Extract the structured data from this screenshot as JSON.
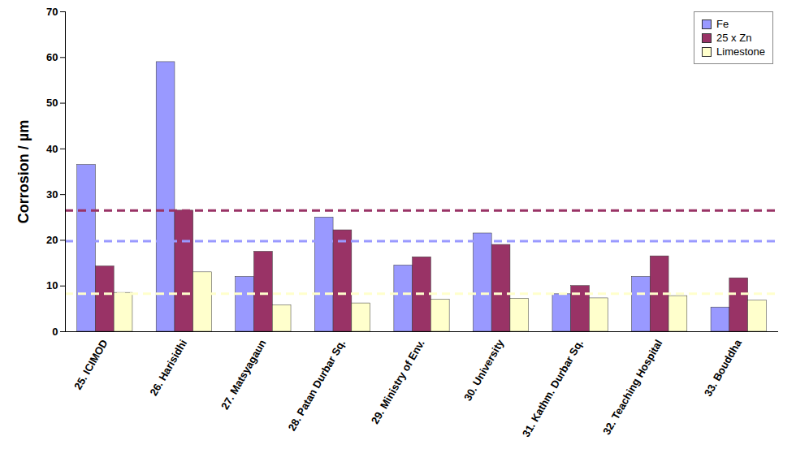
{
  "chart_data": {
    "type": "bar",
    "y_label": "Corrosion / µm",
    "categories": [
      "25. ICIMOD",
      "26. Harisidhi",
      "27. Matsyagaun",
      "28. Patan Durbar Sq.",
      "29. Ministry of Env.",
      "30. University",
      "31. Kathm. Durbar Sq.",
      "32. Teaching Hospital",
      "33. Bouddha"
    ],
    "series": [
      {
        "name": "Fe",
        "color": "#9999ff",
        "values": [
          36.5,
          59,
          12,
          25,
          14.5,
          21.5,
          8.2,
          12,
          5.3
        ],
        "reference_line": 19.8
      },
      {
        "name": "25 x Zn",
        "color": "#993366",
        "values": [
          14.3,
          26.5,
          17.5,
          22.2,
          16.3,
          19,
          10,
          16.5,
          11.7
        ],
        "reference_line": 26.5
      },
      {
        "name": "Limestone",
        "color": "#ffffcc",
        "values": [
          8.5,
          13,
          5.8,
          6.2,
          7,
          7.2,
          7.3,
          7.8,
          6.8
        ],
        "reference_line": 8.3
      }
    ],
    "ylim": [
      0,
      70
    ],
    "yticks": [
      0,
      10,
      20,
      30,
      40,
      50,
      60,
      70
    ],
    "legend": "top-right",
    "grid": false
  }
}
